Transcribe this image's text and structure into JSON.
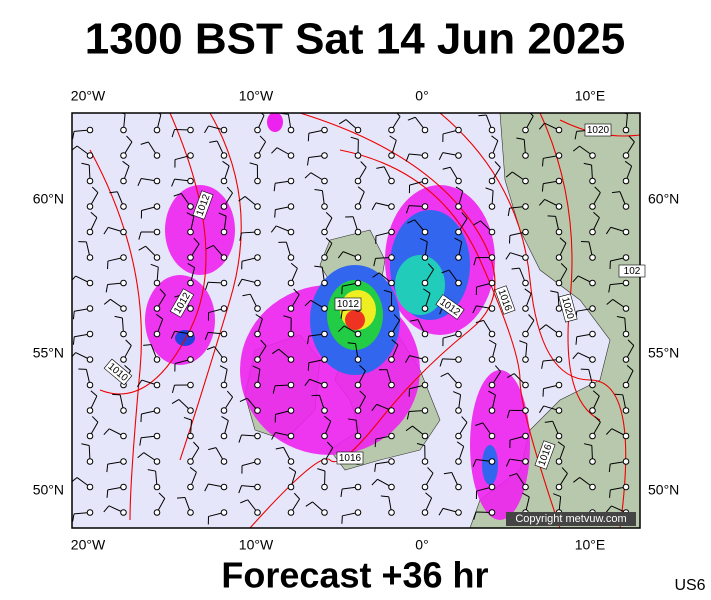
{
  "title": "1300 BST Sat 14 Jun 2025",
  "footer": "Forecast +36 hr",
  "model_code": "US6",
  "copyright": "Copyright metvuw.com",
  "longitude_labels": [
    "20°W",
    "10°W",
    "0°",
    "10°E"
  ],
  "latitude_labels": [
    "60°N",
    "55°N",
    "50°N"
  ],
  "isobar_labels": [
    "1020",
    "1012",
    "1012",
    "1010",
    "1012",
    "1012",
    "1016",
    "1020",
    "1016",
    "1016",
    "102"
  ]
}
